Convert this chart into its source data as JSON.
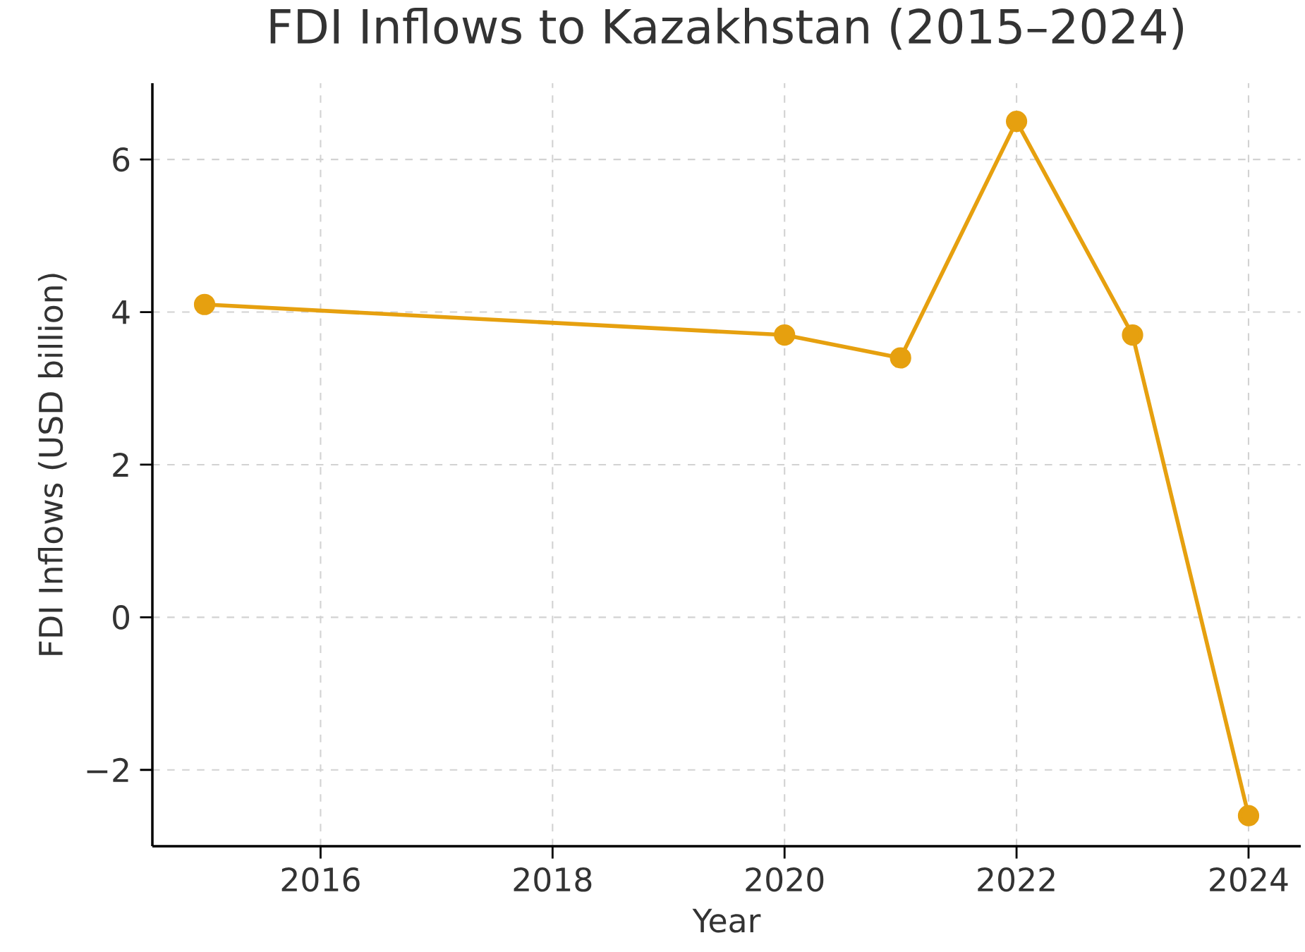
{
  "chart_data": {
    "type": "line",
    "title": "FDI Inflows to Kazakhstan (2015–2024)",
    "xlabel": "Year",
    "ylabel": "FDI Inflows (USD billion)",
    "x": [
      2015,
      2020,
      2021,
      2022,
      2023,
      2024
    ],
    "series": [
      {
        "color": "#e6a00f",
        "values": [
          4.1,
          3.7,
          3.4,
          6.5,
          3.7,
          -2.6
        ]
      }
    ],
    "xlim": [
      2014.55,
      2024.45
    ],
    "ylim": [
      -3.0,
      7.0
    ],
    "xticks": [
      2016,
      2018,
      2020,
      2022,
      2024
    ],
    "yticks": [
      {
        "value": -2,
        "label": "−2"
      },
      0,
      2,
      4,
      6
    ],
    "grid": true,
    "marker": "circle",
    "line_style": "solid"
  }
}
